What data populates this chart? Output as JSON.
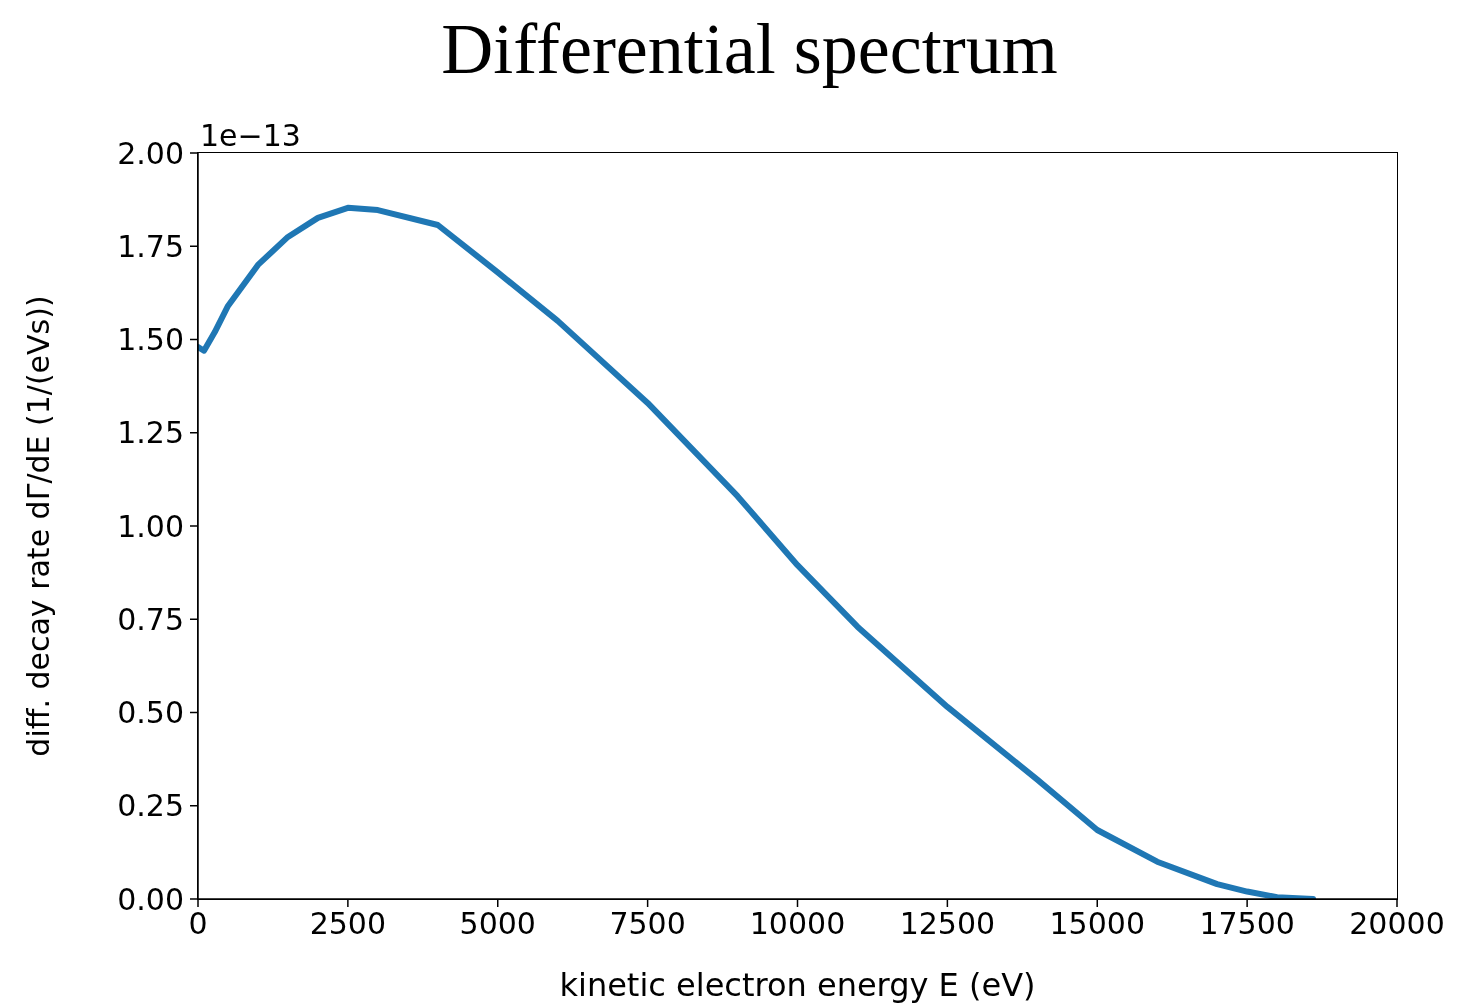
{
  "chart_data": {
    "type": "line",
    "title": "Differential spectrum",
    "xlabel": "kinetic electron energy E (eV)",
    "ylabel": "diff. decay rate dΓ/dE (1/(eVs))",
    "annotations": [
      "1e−13"
    ],
    "x": [
      0,
      100,
      280,
      500,
      1000,
      1500,
      2000,
      2500,
      3000,
      4000,
      5000,
      6000,
      7500,
      9000,
      10000,
      11000,
      12500,
      14000,
      15000,
      16000,
      17000,
      17500,
      18000,
      18600
    ],
    "series": [
      {
        "color": "#1f77b4",
        "values": [
          1.48,
          1.47,
          1.52,
          1.59,
          1.7,
          1.775,
          1.826,
          1.853,
          1.847,
          1.807,
          1.68,
          1.55,
          1.33,
          1.08,
          0.895,
          0.73,
          0.515,
          0.32,
          0.185,
          0.1,
          0.04,
          0.02,
          0.005,
          0
        ]
      }
    ],
    "xlim": [
      0,
      20000
    ],
    "xticks": [
      0,
      2500,
      5000,
      7500,
      10000,
      12500,
      15000,
      17500,
      20000
    ],
    "ylim": [
      0,
      2
    ],
    "yticks": [
      {
        "value": 0,
        "label": "0.00"
      },
      {
        "value": 0.25,
        "label": "0.25"
      },
      {
        "value": 0.5,
        "label": "0.50"
      },
      {
        "value": 0.75,
        "label": "0.75"
      },
      {
        "value": 1,
        "label": "1.00"
      },
      {
        "value": 1.25,
        "label": "1.25"
      },
      {
        "value": 1.5,
        "label": "1.50"
      },
      {
        "value": 1.75,
        "label": "1.75"
      },
      {
        "value": 2,
        "label": "2.00"
      }
    ],
    "grid": false,
    "legend": false,
    "marker": "none",
    "line_style": "solid"
  }
}
